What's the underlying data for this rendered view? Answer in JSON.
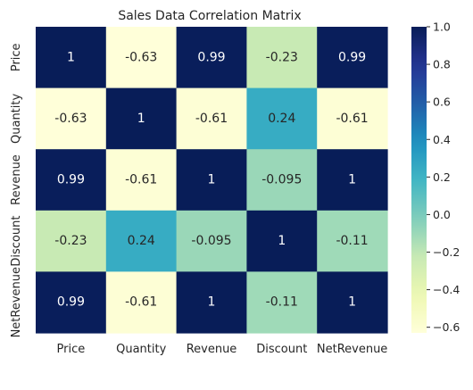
{
  "chart_data": {
    "type": "heatmap",
    "title": "Sales Data Correlation Matrix",
    "xlabel": "",
    "ylabel": "",
    "x_categories": [
      "Price",
      "Quantity",
      "Revenue",
      "Discount",
      "NetRevenue"
    ],
    "y_categories": [
      "Price",
      "Quantity",
      "Revenue",
      "Discount",
      "NetRevenue"
    ],
    "values": [
      [
        1,
        -0.63,
        0.99,
        -0.23,
        0.99
      ],
      [
        -0.63,
        1,
        -0.61,
        0.24,
        -0.61
      ],
      [
        0.99,
        -0.61,
        1,
        -0.095,
        1
      ],
      [
        -0.23,
        0.24,
        -0.095,
        1,
        -0.11
      ],
      [
        0.99,
        -0.61,
        1,
        -0.11,
        1
      ]
    ],
    "annotations": [
      [
        "1",
        "-0.63",
        "0.99",
        "-0.23",
        "0.99"
      ],
      [
        "-0.63",
        "1",
        "-0.61",
        "0.24",
        "-0.61"
      ],
      [
        "0.99",
        "-0.61",
        "1",
        "-0.095",
        "1"
      ],
      [
        "-0.23",
        "0.24",
        "-0.095",
        "1",
        "-0.11"
      ],
      [
        "0.99",
        "-0.61",
        "1",
        "-0.11",
        "1"
      ]
    ],
    "colormap": "YlGnBu",
    "colorbar": {
      "vmin": -0.63,
      "vmax": 1.0,
      "ticks": [
        1.0,
        0.8,
        0.6,
        0.4,
        0.2,
        0.0,
        -0.2,
        -0.4,
        -0.6
      ],
      "tick_labels": [
        "1.0",
        "0.8",
        "0.6",
        "0.4",
        "0.2",
        "0.0",
        "−0.2",
        "−0.4",
        "−0.6"
      ]
    },
    "legend": "colorbar-right",
    "grid": false
  }
}
